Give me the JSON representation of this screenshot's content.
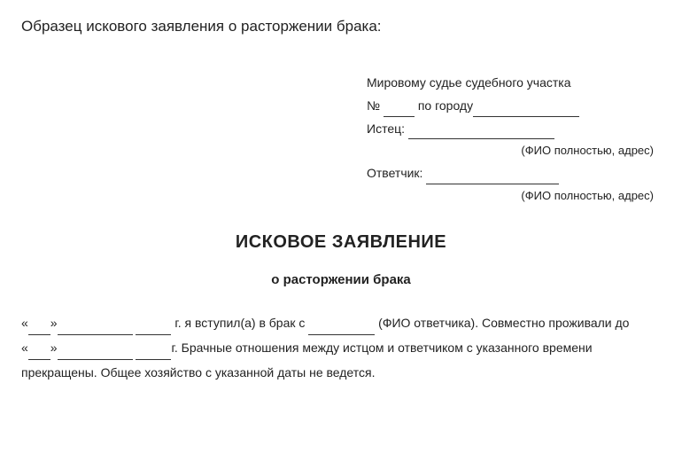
{
  "heading": "Образец искового заявления о расторжении брака:",
  "header": {
    "line1_pre": "Мировому судье судебного участка",
    "line2_num": "№",
    "line2_city": "по городу",
    "plaintiff_label": "Истец:",
    "plaintiff_hint": "(ФИО полностью, адрес)",
    "defendant_label": "Ответчик:",
    "defendant_hint": "(ФИО полностью, адрес)"
  },
  "title": "ИСКОВОЕ ЗАЯВЛЕНИЕ",
  "subtitle": "о расторжении брака",
  "body": {
    "p1_a": "«",
    "p1_b": "»",
    "p1_c": " г. я вступил(а) в брак с ",
    "p1_d": " (ФИО ответчика). Совместно проживали до",
    "p2_a": "«",
    "p2_b": "»",
    "p2_c": "г. Брачные отношения между истцом и ответчиком с указанного времени",
    "p3": "прекращены. Общее хозяйство с указанной даты не ведется."
  },
  "colors": {
    "text": "#222222",
    "background": "#ffffff",
    "underline": "#333333"
  },
  "typography": {
    "font_family": "Arial",
    "heading_size_pt": 13,
    "header_size_pt": 10.5,
    "title_size_pt": 15,
    "subtitle_size_pt": 11,
    "body_size_pt": 10.5
  }
}
